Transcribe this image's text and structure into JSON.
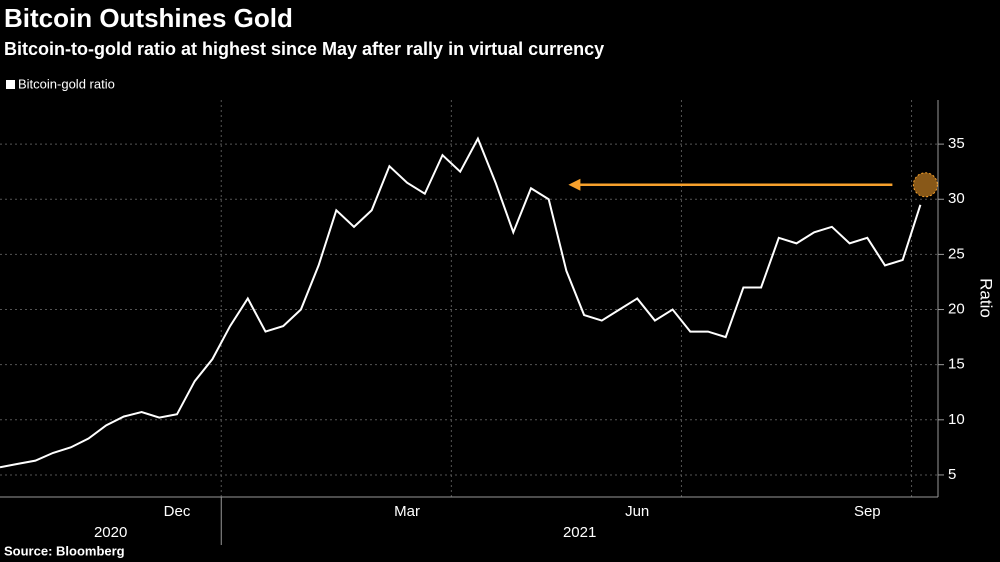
{
  "chart_data": {
    "type": "line",
    "title": "Bitcoin Outshines Gold",
    "subtitle": "Bitcoin-to-gold ratio at highest since May after rally in virtual currency",
    "y_label": "Ratio",
    "source": "Source: Bloomberg",
    "categories": [
      null,
      null,
      null,
      null,
      null,
      null,
      null,
      null,
      null,
      null,
      "Dec",
      null,
      null,
      null,
      null,
      null,
      null,
      null,
      null,
      null,
      null,
      null,
      null,
      "Mar",
      null,
      null,
      null,
      null,
      null,
      null,
      null,
      null,
      null,
      null,
      null,
      null,
      "Jun",
      null,
      null,
      null,
      null,
      null,
      null,
      null,
      null,
      null,
      null,
      null,
      null,
      "Sep",
      null,
      null,
      null
    ],
    "x_group_labels": [
      "2020",
      "2021"
    ],
    "series": [
      {
        "name": "Bitcoin-gold ratio",
        "color": "#ffffff",
        "values": [
          5.7,
          6.0,
          6.3,
          7.0,
          7.5,
          8.3,
          9.5,
          10.3,
          10.7,
          10.2,
          10.5,
          13.5,
          15.5,
          18.5,
          21.0,
          18.0,
          18.5,
          20.0,
          24.0,
          29.0,
          27.5,
          29.0,
          33.0,
          31.5,
          30.5,
          34.0,
          32.5,
          35.5,
          31.5,
          27.0,
          31.0,
          30.0,
          23.5,
          19.5,
          19.0,
          20.0,
          21.0,
          19.0,
          20.0,
          18.0,
          18.0,
          17.5,
          22.0,
          22.0,
          26.5,
          26.0,
          27.0,
          27.5,
          26.0,
          26.5,
          24.0,
          24.5,
          29.5
        ]
      }
    ],
    "highlight_color": "#f7a12c",
    "ylim": [
      3,
      39
    ],
    "yticks": [
      5,
      10,
      15,
      20,
      25,
      30,
      35
    ],
    "grid": true
  }
}
